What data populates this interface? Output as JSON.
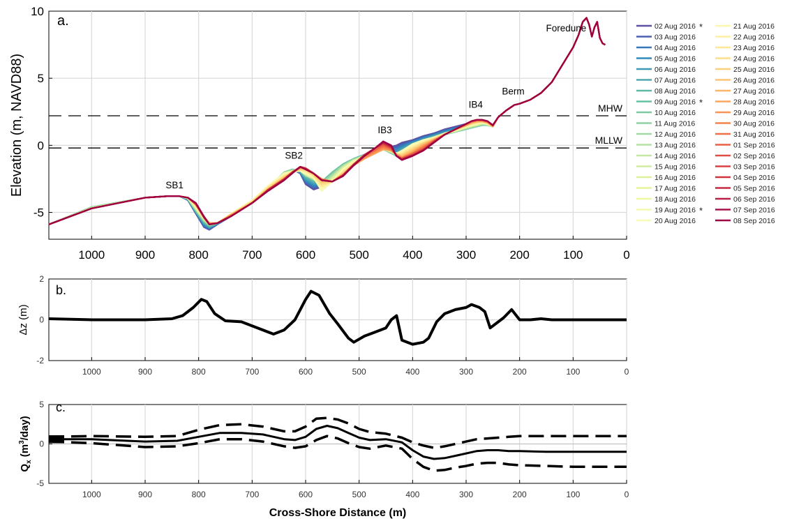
{
  "figure": {
    "panel_a": {
      "label": "a.",
      "ylabel": "Elevation (m, NAVD88)",
      "xlim": [
        1080,
        0
      ],
      "ylim": [
        -7,
        10
      ],
      "xticks": [
        "1000",
        "900",
        "800",
        "700",
        "600",
        "500",
        "400",
        "300",
        "200",
        "100",
        "0"
      ],
      "xtick_values": [
        1000,
        900,
        800,
        700,
        600,
        500,
        400,
        300,
        200,
        100,
        0
      ],
      "yticks": [
        "-5",
        "0",
        "5",
        "10"
      ],
      "ytick_values": [
        -5,
        0,
        5,
        10
      ],
      "hlines": [
        {
          "label": "MHW",
          "y": 2.2
        },
        {
          "label": "MLLW",
          "y": -0.2
        }
      ],
      "annotations": [
        {
          "text": "SB1",
          "x": 845,
          "y": -3.2
        },
        {
          "text": "SB2",
          "x": 622,
          "y": -1.0
        },
        {
          "text": "IB3",
          "x": 452,
          "y": 0.9
        },
        {
          "text": "IB4",
          "x": 282,
          "y": 2.8
        },
        {
          "text": "Berm",
          "x": 212,
          "y": 3.8
        },
        {
          "text": "Foredune",
          "x": 113,
          "y": 8.5
        }
      ]
    },
    "panel_b": {
      "label": "b.",
      "ylabel": "Δz (m)",
      "xlim": [
        1080,
        0
      ],
      "ylim": [
        -2,
        2
      ],
      "xticks": [
        "1000",
        "900",
        "800",
        "700",
        "600",
        "500",
        "400",
        "300",
        "200",
        "100",
        "0"
      ],
      "xtick_values": [
        1000,
        900,
        800,
        700,
        600,
        500,
        400,
        300,
        200,
        100,
        0
      ],
      "yticks": [
        "-2",
        "0",
        "2"
      ],
      "ytick_values": [
        -2,
        0,
        2
      ]
    },
    "panel_c": {
      "label": "c.",
      "ylabel_main": "Q",
      "ylabel_sub": "x",
      "ylabel_rest": " (m",
      "ylabel_sup": "3",
      "ylabel_end": "/day)",
      "xlabel": "Cross-Shore Distance (m)",
      "xlim": [
        1080,
        0
      ],
      "ylim": [
        -5,
        5
      ],
      "xticks": [
        "1000",
        "900",
        "800",
        "700",
        "600",
        "500",
        "400",
        "300",
        "200",
        "100",
        "0"
      ],
      "xtick_values": [
        1000,
        900,
        800,
        700,
        600,
        500,
        400,
        300,
        200,
        100,
        0
      ],
      "yticks": [
        "-5",
        "0",
        "5"
      ],
      "ytick_values": [
        -5,
        0,
        5
      ]
    },
    "legend": {
      "col1": [
        {
          "label": "02 Aug 2016",
          "star": true,
          "color": "#5e4fa2"
        },
        {
          "label": "03 Aug 2016",
          "star": false,
          "color": "#4a5fb0"
        },
        {
          "label": "04 Aug 2016",
          "star": false,
          "color": "#3878b8"
        },
        {
          "label": "05 Aug 2016",
          "star": false,
          "color": "#3288bd"
        },
        {
          "label": "06 Aug 2016",
          "star": false,
          "color": "#3f98b5"
        },
        {
          "label": "07 Aug 2016",
          "star": false,
          "color": "#4ea8ae"
        },
        {
          "label": "08 Aug 2016",
          "star": false,
          "color": "#5db8a6"
        },
        {
          "label": "09 Aug 2016",
          "star": true,
          "color": "#66c2a5"
        },
        {
          "label": "10 Aug 2016",
          "star": false,
          "color": "#7ccaa5"
        },
        {
          "label": "11 Aug 2016",
          "star": false,
          "color": "#8fd2a4"
        },
        {
          "label": "12 Aug 2016",
          "star": false,
          "color": "#a1d9a4"
        },
        {
          "label": "13 Aug 2016",
          "star": false,
          "color": "#b3e0a3"
        },
        {
          "label": "14 Aug 2016",
          "star": false,
          "color": "#c4e7a1"
        },
        {
          "label": "15 Aug 2016",
          "star": false,
          "color": "#d0ec9f"
        },
        {
          "label": "16 Aug 2016",
          "star": false,
          "color": "#dcf19c"
        },
        {
          "label": "17 Aug 2016",
          "star": false,
          "color": "#e6f598"
        },
        {
          "label": "18 Aug 2016",
          "star": false,
          "color": "#eef7a4"
        },
        {
          "label": "19 Aug 2016",
          "star": true,
          "color": "#f4f9b0"
        },
        {
          "label": "20 Aug 2016",
          "star": false,
          "color": "#f8fbba"
        }
      ],
      "col2": [
        {
          "label": "21 Aug 2016",
          "star": false,
          "color": "#fbf7b0"
        },
        {
          "label": "22 Aug 2016",
          "star": false,
          "color": "#fdf0a2"
        },
        {
          "label": "23 Aug 2016",
          "star": false,
          "color": "#fee795"
        },
        {
          "label": "24 Aug 2016",
          "star": false,
          "color": "#fedd88"
        },
        {
          "label": "25 Aug 2016",
          "star": false,
          "color": "#fdd17c"
        },
        {
          "label": "26 Aug 2016",
          "star": false,
          "color": "#fdc472"
        },
        {
          "label": "27 Aug 2016",
          "star": false,
          "color": "#fdb567"
        },
        {
          "label": "28 Aug 2016",
          "star": true,
          "color": "#fca55d"
        },
        {
          "label": "29 Aug 2016",
          "star": false,
          "color": "#f99455"
        },
        {
          "label": "30 Aug 2016",
          "star": false,
          "color": "#f6824d"
        },
        {
          "label": "31 Aug 2016",
          "star": false,
          "color": "#f16f46"
        },
        {
          "label": "01 Sep 2016",
          "star": false,
          "color": "#ea5e44"
        },
        {
          "label": "02 Sep 2016",
          "star": true,
          "color": "#e24d42"
        },
        {
          "label": "03 Sep 2016",
          "star": false,
          "color": "#d9403e"
        },
        {
          "label": "04 Sep 2016",
          "star": false,
          "color": "#d0353f"
        },
        {
          "label": "05 Sep 2016",
          "star": false,
          "color": "#c52a42"
        },
        {
          "label": "06 Sep 2016",
          "star": false,
          "color": "#b81e46"
        },
        {
          "label": "07 Sep 2016",
          "star": false,
          "color": "#a8124a"
        },
        {
          "label": "08 Sep 2016",
          "star": true,
          "color": "#9e0142"
        }
      ],
      "star_symbol": "*"
    }
  },
  "chart_data": [
    {
      "type": "line",
      "title": "",
      "xlabel": "",
      "ylabel": "Elevation (m, NAVD88)",
      "xlim": [
        1080,
        0
      ],
      "ylim": [
        -7,
        10
      ],
      "grid": true,
      "legend_placement": "right, outside",
      "x": [
        1080,
        1000,
        900,
        860,
        835,
        820,
        805,
        790,
        780,
        765,
        740,
        700,
        670,
        640,
        625,
        610,
        600,
        585,
        570,
        550,
        530,
        510,
        490,
        470,
        455,
        440,
        430,
        420,
        400,
        380,
        360,
        340,
        320,
        300,
        290,
        280,
        270,
        260,
        250,
        240,
        225,
        210,
        200,
        180,
        160,
        140,
        120,
        100,
        90,
        82,
        75,
        70,
        65,
        60,
        55,
        50,
        45,
        40
      ],
      "series": [
        {
          "name": "02 Aug 2016",
          "y": [
            -5.9,
            -4.7,
            -3.9,
            -3.8,
            -3.8,
            -4.1,
            -5.1,
            -6.1,
            -6.3,
            -5.9,
            -5.3,
            -4.2,
            -3.2,
            -2.1,
            -1.8,
            -2.1,
            -2.9,
            -3.3,
            -3.1,
            -2.2,
            -1.4,
            -1.0,
            -0.7,
            -0.4,
            -0.2,
            -0.1,
            0.0,
            0.2,
            0.4,
            0.7,
            0.9,
            1.2,
            1.4,
            1.6,
            1.7,
            1.8,
            1.8,
            1.7,
            1.4,
            2.1,
            2.6,
            3.0,
            3.1,
            3.4,
            3.9,
            4.7,
            6.0,
            7.3,
            8.2,
            9.2,
            9.5,
            9.0,
            8.1,
            8.8,
            9.2,
            8.0,
            7.6,
            7.5
          ]
        },
        {
          "name": "09 Aug 2016",
          "y": [
            -5.9,
            -4.6,
            -3.9,
            -3.8,
            -3.8,
            -4.0,
            -4.9,
            -5.7,
            -6.0,
            -5.8,
            -5.2,
            -4.2,
            -3.2,
            -2.0,
            -1.8,
            -1.9,
            -2.3,
            -2.6,
            -2.7,
            -2.0,
            -1.4,
            -1.0,
            -0.7,
            -0.4,
            -0.3,
            -0.6,
            -0.8,
            -0.5,
            0.0,
            0.3,
            0.6,
            0.8,
            1.0,
            1.2,
            1.3,
            1.4,
            1.5,
            1.5,
            1.4,
            2.1,
            2.6,
            3.0,
            3.1,
            3.4,
            3.9,
            4.7,
            6.0,
            7.3,
            8.2,
            9.2,
            9.5,
            9.0,
            8.1,
            8.8,
            9.2,
            8.0,
            7.6,
            7.5
          ]
        },
        {
          "name": "19 Aug 2016",
          "y": [
            -5.9,
            -4.7,
            -3.9,
            -3.8,
            -3.8,
            -3.9,
            -4.6,
            -5.4,
            -5.8,
            -5.8,
            -5.1,
            -4.1,
            -3.0,
            -2.1,
            -2.0,
            -1.9,
            -2.1,
            -2.4,
            -3.4,
            -2.7,
            -1.8,
            -1.2,
            -0.9,
            -0.6,
            -0.3,
            -0.4,
            -0.6,
            -0.4,
            0.1,
            0.4,
            0.6,
            0.9,
            1.1,
            1.4,
            1.5,
            1.6,
            1.7,
            1.6,
            1.4,
            2.1,
            2.6,
            3.0,
            3.1,
            3.4,
            3.9,
            4.7,
            6.0,
            7.3,
            8.2,
            9.2,
            9.5,
            9.0,
            8.1,
            8.8,
            9.2,
            8.0,
            7.6,
            7.5
          ]
        },
        {
          "name": "28 Aug 2016",
          "y": [
            -5.9,
            -4.7,
            -3.9,
            -3.8,
            -3.8,
            -3.9,
            -4.4,
            -5.3,
            -5.8,
            -5.8,
            -5.2,
            -4.3,
            -3.3,
            -2.5,
            -2.0,
            -1.7,
            -1.7,
            -2.1,
            -2.5,
            -2.7,
            -2.2,
            -1.5,
            -1.0,
            -0.6,
            -0.3,
            -0.4,
            -0.7,
            -0.9,
            -0.5,
            0.0,
            0.4,
            0.8,
            1.2,
            1.5,
            1.7,
            1.8,
            1.8,
            1.7,
            1.4,
            2.1,
            2.6,
            3.0,
            3.1,
            3.4,
            3.9,
            4.7,
            6.0,
            7.3,
            8.2,
            9.2,
            9.5,
            9.0,
            8.1,
            8.8,
            9.2,
            8.0,
            7.6,
            7.5
          ]
        },
        {
          "name": "02 Sep 2016",
          "y": [
            -5.9,
            -4.7,
            -3.9,
            -3.8,
            -3.8,
            -3.9,
            -4.4,
            -5.4,
            -5.9,
            -5.8,
            -5.3,
            -4.3,
            -3.3,
            -2.5,
            -2.0,
            -1.6,
            -1.7,
            -2.1,
            -2.6,
            -2.7,
            -2.2,
            -1.4,
            -0.7,
            -0.2,
            0.1,
            -0.2,
            -0.8,
            -1.0,
            -0.7,
            -0.3,
            0.3,
            0.8,
            1.2,
            1.6,
            1.8,
            1.9,
            1.9,
            1.8,
            1.5,
            2.1,
            2.6,
            3.0,
            3.1,
            3.4,
            3.9,
            4.7,
            6.0,
            7.3,
            8.2,
            9.2,
            9.5,
            9.0,
            8.1,
            8.8,
            9.2,
            8.0,
            7.6,
            7.5
          ]
        },
        {
          "name": "08 Sep 2016",
          "y": [
            -5.9,
            -4.7,
            -3.9,
            -3.8,
            -3.8,
            -3.9,
            -4.3,
            -5.3,
            -5.9,
            -5.8,
            -5.3,
            -4.3,
            -3.4,
            -2.6,
            -2.1,
            -1.6,
            -1.8,
            -2.1,
            -2.6,
            -2.7,
            -2.3,
            -1.5,
            -0.8,
            -0.2,
            0.3,
            0.0,
            -0.8,
            -1.1,
            -0.8,
            -0.4,
            0.2,
            0.8,
            1.2,
            1.6,
            1.8,
            1.9,
            1.9,
            1.8,
            1.5,
            2.1,
            2.6,
            3.0,
            3.1,
            3.4,
            3.9,
            4.7,
            6.0,
            7.3,
            8.2,
            9.2,
            9.5,
            9.0,
            8.1,
            8.8,
            9.2,
            8.0,
            7.6,
            7.5
          ]
        }
      ]
    },
    {
      "type": "line",
      "title": "",
      "xlabel": "",
      "ylabel": "Δz (m)",
      "xlim": [
        1080,
        0
      ],
      "ylim": [
        -2,
        2
      ],
      "grid": true,
      "x": [
        1080,
        1000,
        900,
        850,
        830,
        810,
        795,
        785,
        770,
        750,
        720,
        700,
        660,
        640,
        620,
        600,
        590,
        575,
        555,
        540,
        520,
        510,
        490,
        470,
        450,
        440,
        430,
        420,
        400,
        380,
        370,
        355,
        340,
        320,
        300,
        290,
        275,
        265,
        255,
        245,
        230,
        215,
        200,
        180,
        160,
        140,
        120,
        100,
        0
      ],
      "series": [
        {
          "name": "",
          "y": [
            0.05,
            0.0,
            0.0,
            0.05,
            0.2,
            0.6,
            1.0,
            0.9,
            0.3,
            -0.05,
            -0.1,
            -0.3,
            -0.7,
            -0.5,
            0.0,
            1.0,
            1.4,
            1.2,
            0.3,
            -0.2,
            -0.9,
            -1.1,
            -0.8,
            -0.6,
            -0.4,
            0.0,
            0.2,
            -1.0,
            -1.2,
            -1.1,
            -0.9,
            -0.1,
            0.3,
            0.5,
            0.6,
            0.75,
            0.6,
            0.4,
            -0.4,
            -0.2,
            0.1,
            0.5,
            0.0,
            0.0,
            0.05,
            0.0,
            0.0,
            0.0,
            0.0
          ]
        }
      ]
    },
    {
      "type": "line",
      "title": "",
      "xlabel": "Cross-Shore Distance (m)",
      "ylabel": "Qx (m3/day)",
      "xlim": [
        1080,
        0
      ],
      "ylim": [
        -5,
        5
      ],
      "grid": true,
      "x": [
        1080,
        1000,
        900,
        840,
        800,
        760,
        720,
        680,
        640,
        620,
        600,
        580,
        560,
        540,
        520,
        500,
        480,
        450,
        420,
        400,
        380,
        360,
        340,
        320,
        300,
        280,
        260,
        240,
        220,
        200,
        150,
        100,
        50,
        0
      ],
      "series": [
        {
          "name": "Qx",
          "y": [
            0.6,
            0.6,
            0.3,
            0.4,
            0.9,
            1.4,
            1.4,
            1.2,
            0.6,
            0.5,
            0.9,
            1.9,
            2.3,
            2.0,
            1.4,
            0.8,
            0.5,
            0.6,
            0.2,
            -0.8,
            -1.6,
            -1.9,
            -1.8,
            -1.5,
            -1.2,
            -0.9,
            -0.8,
            -0.8,
            -0.9,
            -0.9,
            -1.0,
            -1.0,
            -1.0,
            -1.0
          ]
        },
        {
          "name": "Qx upper",
          "y": [
            0.9,
            1.0,
            0.9,
            1.0,
            1.8,
            2.4,
            2.5,
            2.2,
            1.6,
            1.6,
            2.2,
            3.2,
            3.3,
            3.1,
            2.6,
            1.9,
            1.5,
            1.3,
            0.8,
            0.2,
            -0.2,
            -0.5,
            -0.3,
            0.0,
            0.3,
            0.6,
            0.7,
            0.8,
            0.9,
            1.0,
            1.0,
            1.0,
            1.0,
            1.0
          ]
        },
        {
          "name": "Qx lower",
          "y": [
            0.3,
            0.1,
            -0.4,
            -0.3,
            0.1,
            0.6,
            0.6,
            0.3,
            -0.3,
            -0.5,
            -0.3,
            0.5,
            1.0,
            0.7,
            0.1,
            -0.4,
            -0.6,
            -0.2,
            -0.6,
            -1.9,
            -2.9,
            -3.4,
            -3.3,
            -3.0,
            -2.8,
            -2.5,
            -2.4,
            -2.4,
            -2.6,
            -2.7,
            -2.8,
            -2.9,
            -2.9,
            -2.9
          ]
        }
      ]
    }
  ]
}
